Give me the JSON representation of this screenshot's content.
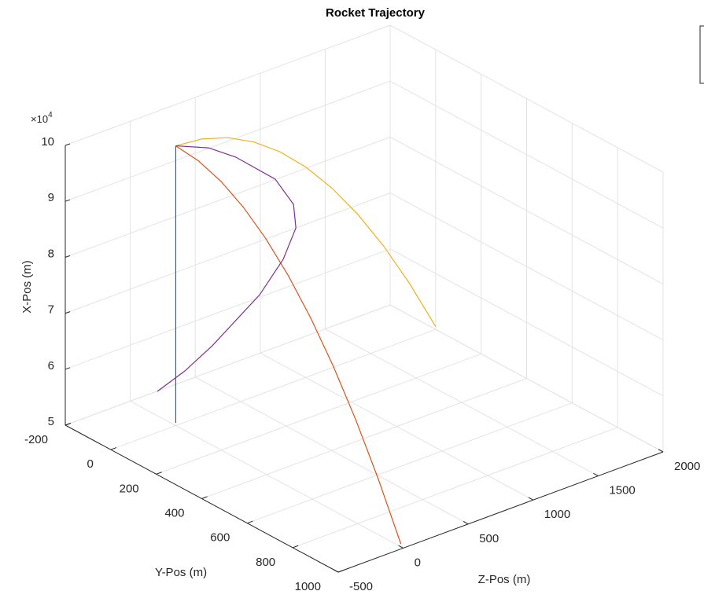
{
  "chart_data": {
    "type": "line3d",
    "title": "Rocket Trajectory",
    "xlabel": "X-Pos (m)",
    "ylabel": "Y-Pos (m)",
    "zlabel": "Z-Pos (m)",
    "x_multiplier": {
      "base": "×10",
      "exponent": "4"
    },
    "xlim": [
      50000,
      100000
    ],
    "xticks": [
      {
        "value": 50000,
        "label": "5"
      },
      {
        "value": 60000,
        "label": "6"
      },
      {
        "value": 70000,
        "label": "7"
      },
      {
        "value": 80000,
        "label": "8"
      },
      {
        "value": 90000,
        "label": "9"
      },
      {
        "value": 100000,
        "label": "10"
      }
    ],
    "ylim": [
      -200,
      1000
    ],
    "yticks": [
      -200,
      0,
      200,
      400,
      600,
      800,
      1000
    ],
    "zlim": [
      -500,
      2000
    ],
    "zticks": [
      -500,
      0,
      500,
      1000,
      1500,
      2000
    ],
    "grid": true,
    "series": [
      {
        "color": "#0072bd",
        "x": [
          100000,
          99505,
          98020,
          95545,
          92080,
          87625,
          82180,
          75745,
          68320,
          59905,
          50500
        ],
        "y": [
          0,
          0,
          0,
          0,
          0,
          0,
          0,
          0,
          0,
          0,
          0
        ],
        "z": [
          0,
          0,
          0,
          0,
          0,
          0,
          0,
          0,
          0,
          0,
          0
        ]
      },
      {
        "color": "#d95319",
        "x": [
          100000,
          99505,
          98020,
          95545,
          92080,
          87625,
          82180,
          75745,
          68320,
          59905,
          50500
        ],
        "y": [
          0,
          99,
          198,
          297,
          396,
          495,
          594,
          693,
          792,
          891,
          990
        ],
        "z": [
          0,
          0,
          0,
          0,
          0,
          0,
          0,
          0,
          0,
          0,
          0
        ]
      },
      {
        "color": "#edb120",
        "x": [
          100000,
          99505,
          98020,
          95545,
          92080,
          87625,
          82180,
          75745,
          68320,
          59905,
          50500
        ],
        "y": [
          0,
          0,
          0,
          0,
          0,
          0,
          0,
          0,
          0,
          0,
          0
        ],
        "z": [
          0,
          200,
          400,
          600,
          800,
          1000,
          1200,
          1400,
          1600,
          1800,
          2000
        ]
      },
      {
        "color": "#7e2f8e",
        "x": [
          100000,
          99505,
          98020,
          93936,
          87625,
          82180,
          75745,
          68320,
          59905,
          55326,
          50500
        ],
        "y": [
          0,
          55,
          109,
          175,
          159,
          130,
          85,
          13,
          -53,
          -104,
          -185
        ],
        "z": [
          0,
          156,
          272,
          459,
          628,
          697,
          678,
          623,
          374,
          252,
          182
        ]
      }
    ]
  }
}
